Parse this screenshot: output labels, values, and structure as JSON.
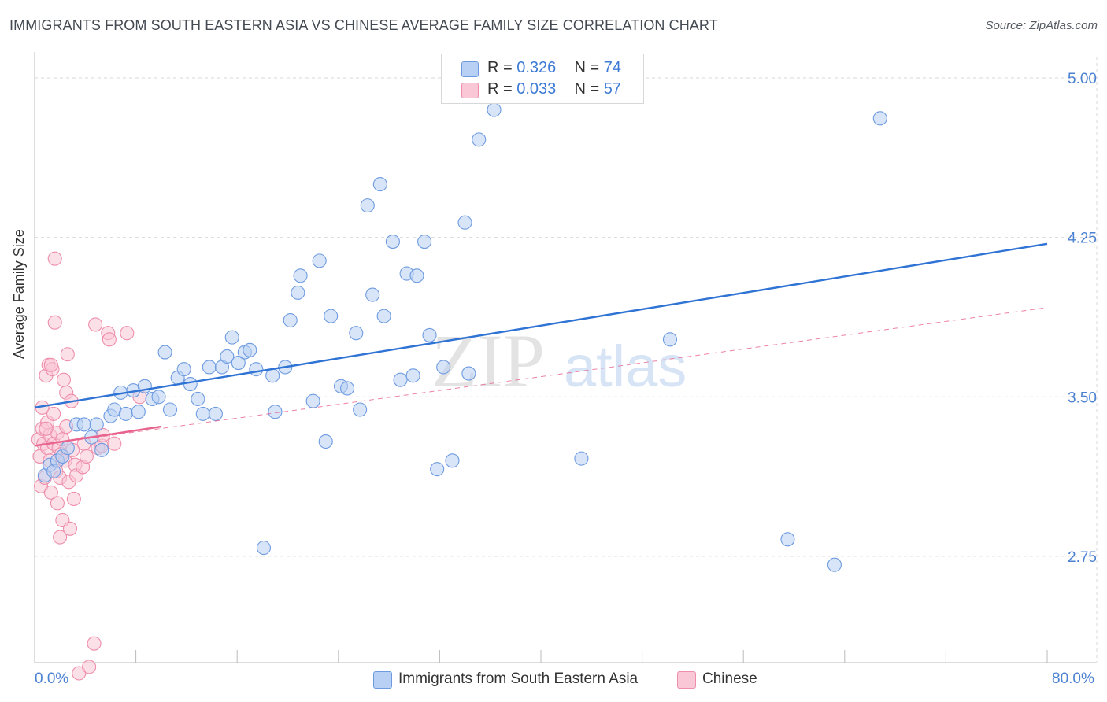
{
  "title": "IMMIGRANTS FROM SOUTH EASTERN ASIA VS CHINESE AVERAGE FAMILY SIZE CORRELATION CHART",
  "source": "Source: ZipAtlas.com",
  "watermark": {
    "zip": "ZIP",
    "atlas": "atlas"
  },
  "legend": {
    "rows": [
      {
        "r_label": "R =",
        "r_value": "0.326",
        "n_label": "N =",
        "n_value": "74"
      },
      {
        "r_label": "R =",
        "r_value": "0.033",
        "n_label": "N =",
        "n_value": "57"
      }
    ]
  },
  "x_axis": {
    "min_label": "0.0%",
    "max_label": "80.0%"
  },
  "colors": {
    "blue_fill": "#b8d0f3",
    "blue_stroke": "#6e9be0",
    "blue_line": "#2f73d4",
    "pink_fill": "#f9c7d6",
    "pink_stroke": "#ee8eaa",
    "pink_line": "#e8638d",
    "tick_text": "#4b81d1",
    "grid": "#d9d9d9"
  },
  "chart_data": {
    "type": "scatter",
    "title": "IMMIGRANTS FROM SOUTH EASTERN ASIA VS CHINESE AVERAGE FAMILY SIZE CORRELATION CHART",
    "xlabel": "",
    "ylabel": "Average Family Size",
    "xlim": [
      0,
      80
    ],
    "ylim": [
      2.25,
      5.1
    ],
    "y_ticks": [
      2.75,
      3.5,
      4.25,
      5.0
    ],
    "y_tick_labels": [
      "2.75",
      "3.50",
      "4.25",
      "5.00"
    ],
    "x_unit": "%",
    "grid": true,
    "legend_position": "top-center",
    "series": [
      {
        "name": "Immigrants from South Eastern Asia",
        "color": "#b8d0f3",
        "trend": {
          "x": [
            0,
            80
          ],
          "y": [
            3.45,
            4.22
          ]
        },
        "points": [
          [
            0.8,
            3.13
          ],
          [
            1.2,
            3.18
          ],
          [
            1.5,
            3.15
          ],
          [
            1.8,
            3.2
          ],
          [
            2.2,
            3.22
          ],
          [
            2.6,
            3.26
          ],
          [
            3.3,
            3.37
          ],
          [
            3.9,
            3.37
          ],
          [
            4.5,
            3.31
          ],
          [
            4.9,
            3.37
          ],
          [
            5.3,
            3.25
          ],
          [
            6.0,
            3.41
          ],
          [
            6.3,
            3.44
          ],
          [
            6.8,
            3.52
          ],
          [
            7.2,
            3.42
          ],
          [
            7.8,
            3.53
          ],
          [
            8.2,
            3.43
          ],
          [
            8.7,
            3.55
          ],
          [
            9.3,
            3.49
          ],
          [
            9.8,
            3.5
          ],
          [
            10.3,
            3.71
          ],
          [
            10.7,
            3.44
          ],
          [
            11.3,
            3.59
          ],
          [
            11.8,
            3.63
          ],
          [
            12.3,
            3.56
          ],
          [
            12.9,
            3.49
          ],
          [
            13.3,
            3.42
          ],
          [
            13.8,
            3.64
          ],
          [
            14.3,
            3.42
          ],
          [
            14.8,
            3.64
          ],
          [
            15.2,
            3.69
          ],
          [
            15.6,
            3.78
          ],
          [
            16.1,
            3.66
          ],
          [
            16.6,
            3.71
          ],
          [
            17.0,
            3.72
          ],
          [
            17.5,
            3.63
          ],
          [
            18.1,
            2.79
          ],
          [
            18.8,
            3.6
          ],
          [
            19.0,
            3.43
          ],
          [
            19.8,
            3.64
          ],
          [
            20.2,
            3.86
          ],
          [
            20.8,
            3.99
          ],
          [
            21.0,
            4.07
          ],
          [
            22.0,
            3.48
          ],
          [
            22.5,
            4.14
          ],
          [
            23.0,
            3.29
          ],
          [
            23.4,
            3.88
          ],
          [
            24.2,
            3.55
          ],
          [
            24.7,
            3.54
          ],
          [
            25.4,
            3.8
          ],
          [
            25.7,
            3.44
          ],
          [
            26.3,
            4.4
          ],
          [
            26.7,
            3.98
          ],
          [
            27.3,
            4.5
          ],
          [
            27.6,
            3.88
          ],
          [
            28.3,
            4.23
          ],
          [
            28.9,
            3.58
          ],
          [
            29.4,
            4.08
          ],
          [
            29.9,
            3.6
          ],
          [
            30.2,
            4.07
          ],
          [
            30.8,
            4.23
          ],
          [
            31.2,
            3.79
          ],
          [
            31.8,
            3.16
          ],
          [
            32.3,
            3.64
          ],
          [
            33.0,
            3.2
          ],
          [
            34.0,
            4.32
          ],
          [
            34.3,
            3.61
          ],
          [
            35.1,
            4.71
          ],
          [
            36.3,
            4.85
          ],
          [
            43.2,
            3.21
          ],
          [
            50.2,
            3.77
          ],
          [
            59.5,
            2.83
          ],
          [
            63.2,
            2.71
          ],
          [
            66.8,
            4.81
          ]
        ]
      },
      {
        "name": "Chinese",
        "color": "#f9c7d6",
        "trend_solid": {
          "x": [
            0,
            10
          ],
          "y": [
            3.27,
            3.36
          ]
        },
        "trend_dashed": {
          "x": [
            0,
            80
          ],
          "y": [
            3.27,
            3.92
          ]
        },
        "points": [
          [
            0.3,
            3.3
          ],
          [
            0.4,
            3.22
          ],
          [
            0.5,
            3.08
          ],
          [
            0.6,
            3.45
          ],
          [
            0.6,
            3.35
          ],
          [
            0.7,
            3.28
          ],
          [
            0.8,
            3.12
          ],
          [
            0.9,
            3.6
          ],
          [
            1.0,
            3.26
          ],
          [
            1.0,
            3.38
          ],
          [
            1.1,
            3.65
          ],
          [
            1.2,
            3.32
          ],
          [
            1.2,
            3.2
          ],
          [
            1.3,
            3.05
          ],
          [
            1.4,
            3.63
          ],
          [
            1.5,
            3.42
          ],
          [
            1.5,
            3.28
          ],
          [
            1.6,
            4.15
          ],
          [
            1.6,
            3.85
          ],
          [
            1.7,
            3.15
          ],
          [
            1.8,
            3.33
          ],
          [
            1.8,
            3.0
          ],
          [
            1.9,
            3.26
          ],
          [
            2.0,
            3.12
          ],
          [
            2.0,
            2.84
          ],
          [
            2.1,
            3.23
          ],
          [
            2.2,
            3.3
          ],
          [
            2.2,
            2.92
          ],
          [
            2.3,
            3.58
          ],
          [
            2.4,
            3.2
          ],
          [
            2.5,
            3.52
          ],
          [
            2.5,
            3.36
          ],
          [
            2.6,
            3.7
          ],
          [
            2.7,
            3.1
          ],
          [
            2.8,
            2.88
          ],
          [
            2.9,
            3.48
          ],
          [
            3.0,
            3.25
          ],
          [
            3.1,
            3.02
          ],
          [
            3.2,
            3.18
          ],
          [
            3.3,
            3.13
          ],
          [
            3.5,
            2.2
          ],
          [
            3.8,
            3.17
          ],
          [
            3.9,
            3.28
          ],
          [
            4.1,
            3.22
          ],
          [
            4.3,
            2.23
          ],
          [
            4.7,
            2.34
          ],
          [
            4.8,
            3.84
          ],
          [
            5.0,
            3.26
          ],
          [
            5.3,
            3.27
          ],
          [
            5.4,
            3.32
          ],
          [
            5.8,
            3.8
          ],
          [
            5.9,
            3.77
          ],
          [
            6.3,
            3.28
          ],
          [
            7.3,
            3.8
          ],
          [
            8.3,
            3.5
          ],
          [
            0.9,
            3.35
          ],
          [
            1.3,
            3.65
          ]
        ]
      }
    ]
  },
  "bottom_legend": [
    {
      "label": "Immigrants from South Eastern Asia"
    },
    {
      "label": "Chinese"
    }
  ]
}
